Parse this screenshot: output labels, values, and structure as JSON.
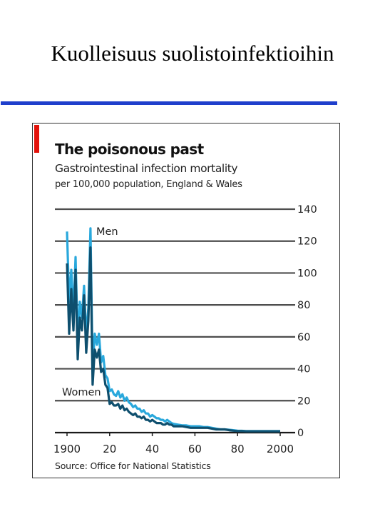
{
  "slide": {
    "title": "Kuolleisuus suolistoinfektioihin"
  },
  "chart_data": {
    "type": "line",
    "title": "The poisonous past",
    "subtitle": "Gastrointestinal infection mortality",
    "subtitle2": "per 100,000 population, England & Wales",
    "source": "Source: Office for National Statistics",
    "xlabel": "",
    "ylabel": "",
    "xlim": [
      1900,
      2000
    ],
    "ylim": [
      0,
      140
    ],
    "x_ticks": [
      1900,
      1920,
      1940,
      1960,
      1980,
      2000
    ],
    "x_tick_labels": [
      "1900",
      "20",
      "40",
      "60",
      "80",
      "2000"
    ],
    "y_ticks": [
      0,
      20,
      40,
      60,
      80,
      100,
      120,
      140
    ],
    "grid": true,
    "accent_color": "#e3120b",
    "series": [
      {
        "name": "Men",
        "color": "#29a8dc",
        "points": [
          [
            1900,
            126
          ],
          [
            1901,
            82
          ],
          [
            1902,
            102
          ],
          [
            1903,
            74
          ],
          [
            1904,
            110
          ],
          [
            1905,
            58
          ],
          [
            1906,
            82
          ],
          [
            1907,
            72
          ],
          [
            1908,
            92
          ],
          [
            1909,
            60
          ],
          [
            1910,
            78
          ],
          [
            1911,
            128
          ],
          [
            1912,
            40
          ],
          [
            1913,
            62
          ],
          [
            1914,
            55
          ],
          [
            1915,
            62
          ],
          [
            1916,
            44
          ],
          [
            1917,
            48
          ],
          [
            1918,
            36
          ],
          [
            1919,
            34
          ],
          [
            1920,
            26
          ],
          [
            1921,
            27
          ],
          [
            1922,
            24
          ],
          [
            1923,
            23
          ],
          [
            1924,
            26
          ],
          [
            1925,
            22
          ],
          [
            1926,
            24
          ],
          [
            1927,
            20
          ],
          [
            1928,
            22
          ],
          [
            1929,
            19
          ],
          [
            1930,
            18
          ],
          [
            1931,
            16
          ],
          [
            1932,
            17
          ],
          [
            1933,
            15
          ],
          [
            1934,
            15
          ],
          [
            1935,
            13
          ],
          [
            1936,
            14
          ],
          [
            1937,
            12
          ],
          [
            1938,
            12
          ],
          [
            1939,
            10
          ],
          [
            1940,
            11
          ],
          [
            1941,
            10
          ],
          [
            1942,
            9
          ],
          [
            1943,
            9
          ],
          [
            1944,
            8
          ],
          [
            1945,
            8
          ],
          [
            1946,
            7
          ],
          [
            1947,
            8
          ],
          [
            1948,
            7
          ],
          [
            1949,
            6
          ],
          [
            1950,
            5.5
          ],
          [
            1952,
            5
          ],
          [
            1954,
            4.5
          ],
          [
            1956,
            4.5
          ],
          [
            1958,
            4
          ],
          [
            1960,
            4
          ],
          [
            1962,
            4
          ],
          [
            1964,
            3.5
          ],
          [
            1966,
            3.5
          ],
          [
            1968,
            3
          ],
          [
            1970,
            2.5
          ],
          [
            1972,
            2
          ],
          [
            1974,
            2
          ],
          [
            1976,
            1.8
          ],
          [
            1978,
            1.5
          ],
          [
            1980,
            1.2
          ],
          [
            1982,
            1.1
          ],
          [
            1984,
            1
          ],
          [
            1986,
            1
          ],
          [
            1988,
            1
          ],
          [
            1990,
            1
          ],
          [
            1992,
            1
          ],
          [
            1994,
            1
          ],
          [
            1996,
            1
          ],
          [
            1998,
            1
          ],
          [
            2000,
            1
          ]
        ]
      },
      {
        "name": "Women",
        "color": "#0e4f6e",
        "points": [
          [
            1900,
            106
          ],
          [
            1901,
            62
          ],
          [
            1902,
            90
          ],
          [
            1903,
            64
          ],
          [
            1904,
            102
          ],
          [
            1905,
            46
          ],
          [
            1906,
            72
          ],
          [
            1907,
            64
          ],
          [
            1908,
            86
          ],
          [
            1909,
            50
          ],
          [
            1910,
            70
          ],
          [
            1911,
            116
          ],
          [
            1912,
            30
          ],
          [
            1913,
            52
          ],
          [
            1914,
            47
          ],
          [
            1915,
            52
          ],
          [
            1916,
            38
          ],
          [
            1917,
            40
          ],
          [
            1918,
            30
          ],
          [
            1919,
            28
          ],
          [
            1920,
            18
          ],
          [
            1921,
            19
          ],
          [
            1922,
            17
          ],
          [
            1923,
            17
          ],
          [
            1924,
            18
          ],
          [
            1925,
            15
          ],
          [
            1926,
            17
          ],
          [
            1927,
            14
          ],
          [
            1928,
            15
          ],
          [
            1929,
            13
          ],
          [
            1930,
            12
          ],
          [
            1931,
            11
          ],
          [
            1932,
            12
          ],
          [
            1933,
            10
          ],
          [
            1934,
            10
          ],
          [
            1935,
            9
          ],
          [
            1936,
            10
          ],
          [
            1937,
            8
          ],
          [
            1938,
            8
          ],
          [
            1939,
            7
          ],
          [
            1940,
            8
          ],
          [
            1941,
            7
          ],
          [
            1942,
            6
          ],
          [
            1943,
            6
          ],
          [
            1944,
            6
          ],
          [
            1945,
            5
          ],
          [
            1946,
            5
          ],
          [
            1947,
            6
          ],
          [
            1948,
            5
          ],
          [
            1949,
            5
          ],
          [
            1950,
            4
          ],
          [
            1952,
            4
          ],
          [
            1954,
            4
          ],
          [
            1956,
            3.5
          ],
          [
            1958,
            3
          ],
          [
            1960,
            3
          ],
          [
            1962,
            3
          ],
          [
            1964,
            3
          ],
          [
            1966,
            3
          ],
          [
            1968,
            2.5
          ],
          [
            1970,
            2
          ],
          [
            1972,
            2
          ],
          [
            1974,
            2
          ],
          [
            1976,
            1.5
          ],
          [
            1978,
            1.2
          ],
          [
            1980,
            1
          ],
          [
            1982,
            1
          ],
          [
            1984,
            0.8
          ],
          [
            1986,
            0.8
          ],
          [
            1988,
            0.8
          ],
          [
            1990,
            0.8
          ],
          [
            1992,
            0.8
          ],
          [
            1994,
            0.8
          ],
          [
            1996,
            0.8
          ],
          [
            1998,
            0.8
          ],
          [
            2000,
            0.8
          ]
        ]
      }
    ]
  }
}
